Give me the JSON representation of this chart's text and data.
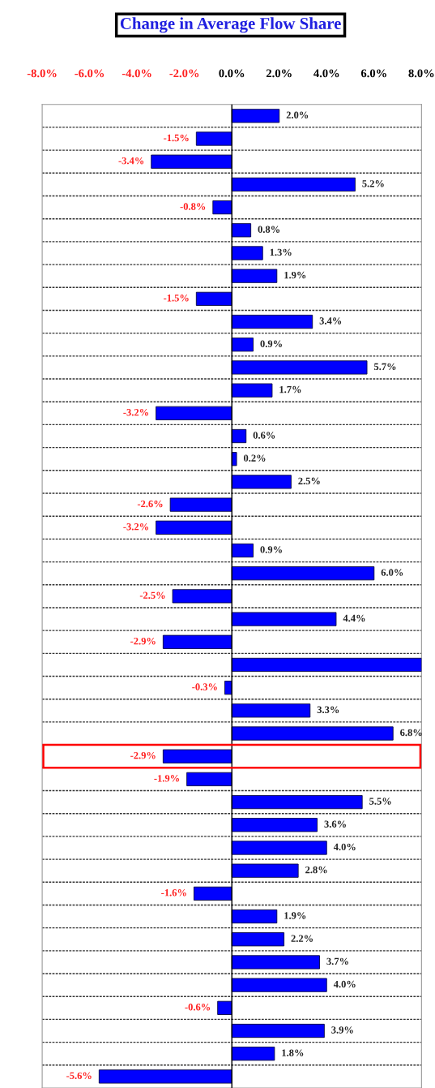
{
  "chart_data": {
    "type": "bar",
    "orientation": "horizontal",
    "title": "Change in Average Flow Share",
    "categories": [
      null,
      null,
      null,
      null,
      null,
      null,
      null,
      null,
      null,
      null,
      null,
      null,
      null,
      null,
      null,
      null,
      null,
      null,
      null,
      null,
      null,
      null,
      null,
      null,
      null,
      null,
      null,
      null,
      null,
      null,
      null,
      null,
      null,
      null,
      null,
      null,
      null,
      null,
      null,
      null,
      null,
      null,
      null
    ],
    "values": [
      2.0,
      -1.5,
      -3.4,
      5.2,
      -0.8,
      0.8,
      1.3,
      1.9,
      -1.5,
      3.4,
      0.9,
      5.7,
      1.7,
      -3.2,
      0.6,
      0.2,
      2.5,
      -2.6,
      -3.2,
      0.9,
      6.0,
      -2.5,
      4.4,
      -2.9,
      8.0,
      -0.3,
      3.3,
      6.8,
      -2.9,
      -1.9,
      5.5,
      3.6,
      4.0,
      2.8,
      -1.6,
      1.9,
      2.2,
      3.7,
      4.0,
      -0.6,
      3.9,
      1.8,
      -5.6
    ],
    "value_labels": [
      "2.0%",
      "-1.5%",
      "-3.4%",
      "5.2%",
      "-0.8%",
      "0.8%",
      "1.3%",
      "1.9%",
      "-1.5%",
      "3.4%",
      "0.9%",
      "5.7%",
      "1.7%",
      "-3.2%",
      "0.6%",
      "0.2%",
      "2.5%",
      "-2.6%",
      "-3.2%",
      "0.9%",
      "6.0%",
      "-2.5%",
      "4.4%",
      "-2.9%",
      null,
      "-0.3%",
      "3.3%",
      "6.8%",
      "-2.9%",
      "-1.9%",
      "5.5%",
      "3.6%",
      "4.0%",
      "2.8%",
      "-1.6%",
      "1.9%",
      "2.2%",
      "3.7%",
      "4.0%",
      "-0.6%",
      "3.9%",
      "1.8%",
      "-5.6%"
    ],
    "color": "#0000ff",
    "xlim": [
      -8,
      8
    ],
    "xticks": [
      {
        "value": -8,
        "label": "-8.0%"
      },
      {
        "value": -6,
        "label": "-6.0%"
      },
      {
        "value": -4,
        "label": "-4.0%"
      },
      {
        "value": -2,
        "label": "-2.0%"
      },
      {
        "value": 0,
        "label": "0.0%"
      },
      {
        "value": 2,
        "label": "2.0%"
      },
      {
        "value": 4,
        "label": "4.0%"
      },
      {
        "value": 6,
        "label": "6.0%"
      },
      {
        "value": 8,
        "label": "8.0%"
      }
    ],
    "grid": "y",
    "tick_labels": "x"
  }
}
